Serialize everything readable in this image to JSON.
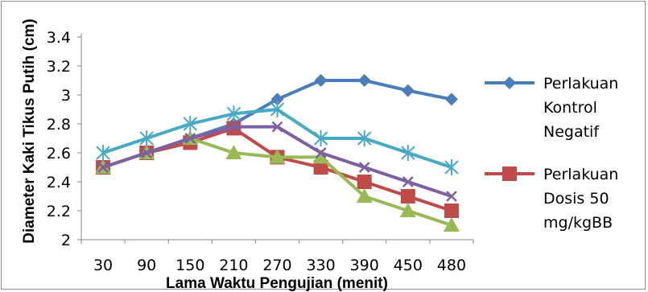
{
  "chart_data": {
    "type": "line",
    "title": "",
    "xlabel": "Lama Waktu Pengujian (menit)",
    "ylabel": "Diameter Kaki Tikus Putih (cm)",
    "categories": [
      "30",
      "90",
      "150",
      "210",
      "270",
      "330",
      "390",
      "450",
      "480"
    ],
    "ylim": [
      2,
      3.4
    ],
    "yticks": [
      "2",
      "2.2",
      "2.4",
      "2.6",
      "2.8",
      "3",
      "3.2",
      "3.4"
    ],
    "grid": false,
    "legend_position": "right",
    "series": [
      {
        "name": "Perlakuan Kontrol Negatif",
        "legend_lines": [
          "Perlakuan",
          "Kontrol",
          "Negatif"
        ],
        "color": "#4a7ebb",
        "marker": "diamond",
        "values": [
          2.5,
          2.6,
          2.7,
          2.8,
          2.97,
          3.1,
          3.1,
          3.03,
          2.97
        ]
      },
      {
        "name": "Perlakuan Dosis 50 mg/kgBB",
        "legend_lines": [
          "Perlakuan",
          "Dosis 50",
          "mg/kgBB"
        ],
        "color": "#be4b48",
        "marker": "square",
        "values": [
          2.5,
          2.6,
          2.67,
          2.77,
          2.57,
          2.5,
          2.4,
          2.3,
          2.2
        ]
      },
      {
        "color": "#98b954",
        "marker": "triangle",
        "values": [
          2.5,
          2.6,
          2.7,
          2.6,
          2.57,
          2.57,
          2.3,
          2.2,
          2.1
        ]
      },
      {
        "color": "#7d60a0",
        "marker": "x",
        "values": [
          2.5,
          2.6,
          2.7,
          2.78,
          2.78,
          2.6,
          2.5,
          2.4,
          2.3
        ]
      },
      {
        "color": "#46aac5",
        "marker": "star",
        "values": [
          2.6,
          2.7,
          2.8,
          2.87,
          2.9,
          2.7,
          2.7,
          2.6,
          2.5
        ]
      }
    ]
  }
}
